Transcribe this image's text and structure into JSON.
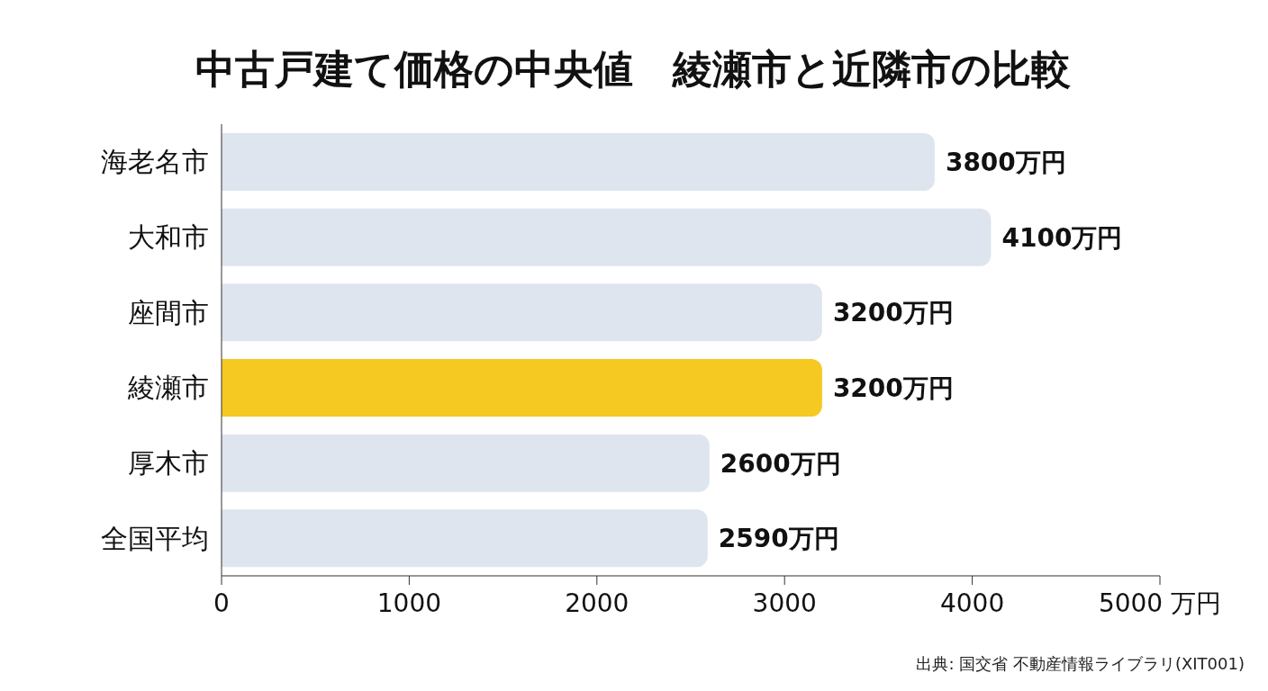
{
  "chart_data": {
    "type": "bar",
    "orientation": "horizontal",
    "title": "中古戸建て価格の中央値　綾瀬市と近隣市の比較",
    "categories": [
      "海老名市",
      "大和市",
      "座間市",
      "綾瀬市",
      "厚木市",
      "全国平均"
    ],
    "values": [
      3800,
      4100,
      3200,
      3200,
      2600,
      2590
    ],
    "colors": [
      "#dfe5ee",
      "#dfe5ee",
      "#dfe5ee",
      "#f5c822",
      "#dfe5ee",
      "#dfe5ee"
    ],
    "value_labels": [
      "3800万円",
      "4100万円",
      "3200万円",
      "3200万円",
      "2600万円",
      "2590万円"
    ],
    "xlim": [
      0,
      5000
    ],
    "xticks": [
      0,
      1000,
      2000,
      3000,
      4000,
      {
        "value": 5000,
        "label": "5000 万円"
      }
    ],
    "grid": false,
    "annotations": [
      "出典: 国交省 不動産情報ライブラリ(XIT001)"
    ]
  }
}
